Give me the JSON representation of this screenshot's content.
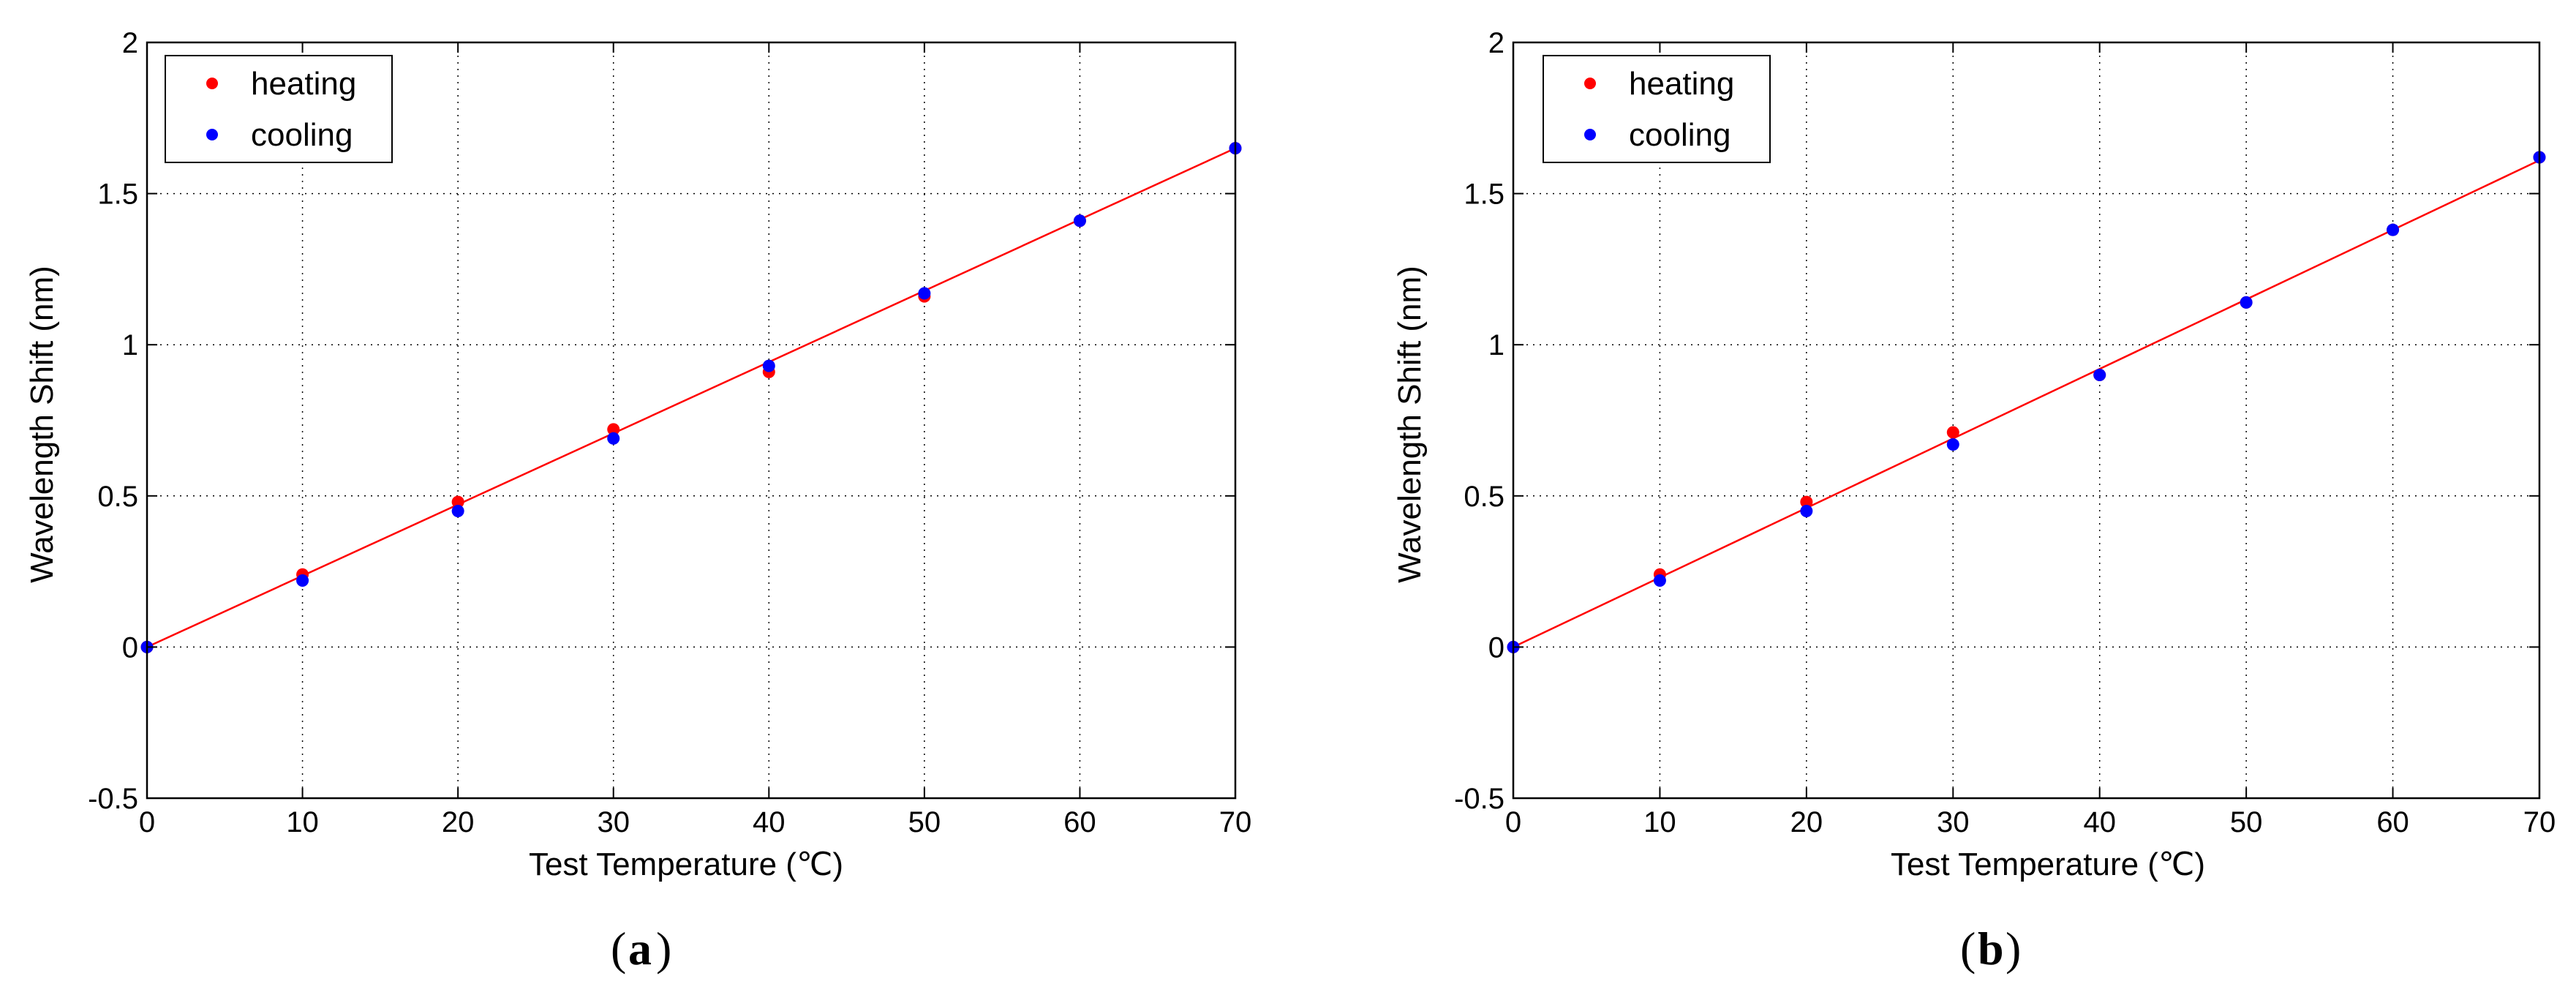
{
  "colors": {
    "heating": "#ff0000",
    "cooling": "#0000ff",
    "fit": "#ff0000",
    "grid": "#000000",
    "axes": "#000000"
  },
  "chart_data": [
    {
      "type": "scatter",
      "panel_label": "a",
      "xlabel": "Test Temperature (℃)",
      "ylabel": "Wavelength Shift (nm)",
      "xlim": [
        0,
        70
      ],
      "ylim": [
        -0.5,
        2
      ],
      "xticks": [
        0,
        10,
        20,
        30,
        40,
        50,
        60,
        70
      ],
      "yticks": [
        -0.5,
        0,
        0.5,
        1,
        1.5,
        2
      ],
      "xtick_labels": [
        "0",
        "10",
        "20",
        "30",
        "40",
        "50",
        "60",
        "70"
      ],
      "ytick_labels": [
        "-0.5",
        "0",
        "0.5",
        "1",
        "1.5",
        "2"
      ],
      "grid": true,
      "legend_position": "top-left",
      "series": [
        {
          "name": "heating",
          "x": [
            0,
            10,
            20,
            30,
            40,
            50,
            60,
            70
          ],
          "y": [
            0,
            0.24,
            0.48,
            0.72,
            0.91,
            1.16,
            1.41,
            1.65
          ]
        },
        {
          "name": "cooling",
          "x": [
            0,
            10,
            20,
            30,
            40,
            50,
            60,
            70
          ],
          "y": [
            0,
            0.22,
            0.45,
            0.69,
            0.93,
            1.17,
            1.41,
            1.65
          ]
        }
      ],
      "fit_line": {
        "x": [
          0,
          70
        ],
        "y": [
          0,
          1.65
        ]
      }
    },
    {
      "type": "scatter",
      "panel_label": "b",
      "xlabel": "Test Temperature (℃)",
      "ylabel": "Wavelength Shift (nm)",
      "xlim": [
        0,
        70
      ],
      "ylim": [
        -0.5,
        2
      ],
      "xticks": [
        0,
        10,
        20,
        30,
        40,
        50,
        60,
        70
      ],
      "yticks": [
        -0.5,
        0,
        0.5,
        1,
        1.5,
        2
      ],
      "xtick_labels": [
        "0",
        "10",
        "20",
        "30",
        "40",
        "50",
        "60",
        "70"
      ],
      "ytick_labels": [
        "-0.5",
        "0",
        "0.5",
        "1",
        "1.5",
        "2"
      ],
      "grid": true,
      "legend_position": "top-left",
      "series": [
        {
          "name": "heating",
          "x": [
            0,
            10,
            20,
            30,
            40,
            50,
            60,
            70
          ],
          "y": [
            0,
            0.24,
            0.48,
            0.71,
            0.9,
            1.14,
            1.38,
            1.62
          ]
        },
        {
          "name": "cooling",
          "x": [
            0,
            10,
            20,
            30,
            40,
            50,
            60,
            70
          ],
          "y": [
            0,
            0.22,
            0.45,
            0.67,
            0.9,
            1.14,
            1.38,
            1.62
          ]
        }
      ],
      "fit_line": {
        "x": [
          0,
          70
        ],
        "y": [
          0,
          1.61
        ]
      }
    }
  ]
}
